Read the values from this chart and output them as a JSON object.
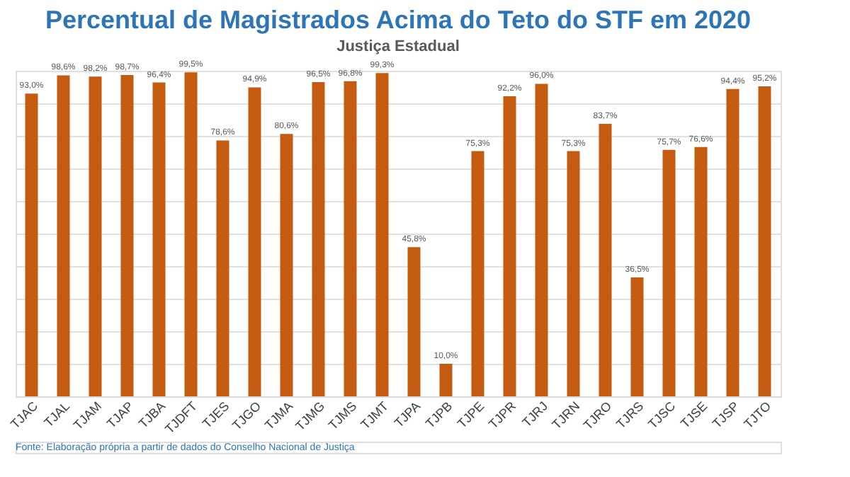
{
  "chart_data": {
    "type": "bar",
    "title": "Percentual de Magistrados Acima do Teto do STF em 2020",
    "subtitle": "Justiça Estadual",
    "categories": [
      "TJAC",
      "TJAL",
      "TJAM",
      "TJAP",
      "TJBA",
      "TJDFT",
      "TJES",
      "TJGO",
      "TJMA",
      "TJMG",
      "TJMS",
      "TJMT",
      "TJPA",
      "TJPB",
      "TJPE",
      "TJPR",
      "TJRJ",
      "TJRN",
      "TJRO",
      "TJRS",
      "TJSC",
      "TJSE",
      "TJSP",
      "TJTO"
    ],
    "values": [
      93.0,
      98.6,
      98.2,
      98.7,
      96.4,
      99.5,
      78.6,
      94.9,
      80.6,
      96.5,
      96.8,
      99.3,
      45.8,
      10.0,
      75.3,
      92.2,
      96.0,
      75.3,
      83.7,
      36.5,
      75.7,
      76.6,
      94.4,
      95.2
    ],
    "value_labels": [
      "93,0%",
      "98,6%",
      "98,2%",
      "98,7%",
      "96,4%",
      "99,5%",
      "78,6%",
      "94,9%",
      "80,6%",
      "96,5%",
      "96,8%",
      "99,3%",
      "45,8%",
      "10,0%",
      "75,3%",
      "92,2%",
      "96,0%",
      "75,3%",
      "83,7%",
      "36,5%",
      "75,7%",
      "76,6%",
      "94,4%",
      "95,2%"
    ],
    "color": "#c55a11",
    "ylim": [
      0,
      100
    ],
    "yticks": [
      {
        "value": 0,
        "label": null
      },
      {
        "value": 10,
        "label": null
      },
      {
        "value": 20,
        "label": null
      },
      {
        "value": 30,
        "label": null
      },
      {
        "value": 40,
        "label": null
      },
      {
        "value": 50,
        "label": null
      },
      {
        "value": 60,
        "label": null
      },
      {
        "value": 70,
        "label": null
      },
      {
        "value": 80,
        "label": null
      },
      {
        "value": 90,
        "label": null
      },
      {
        "value": 100,
        "label": null
      }
    ],
    "tick_labels": "x",
    "grid": "y",
    "annotations": [
      "Fonte: Elaboração própria a partir de dados do Conselho Nacional de Justiça"
    ]
  }
}
